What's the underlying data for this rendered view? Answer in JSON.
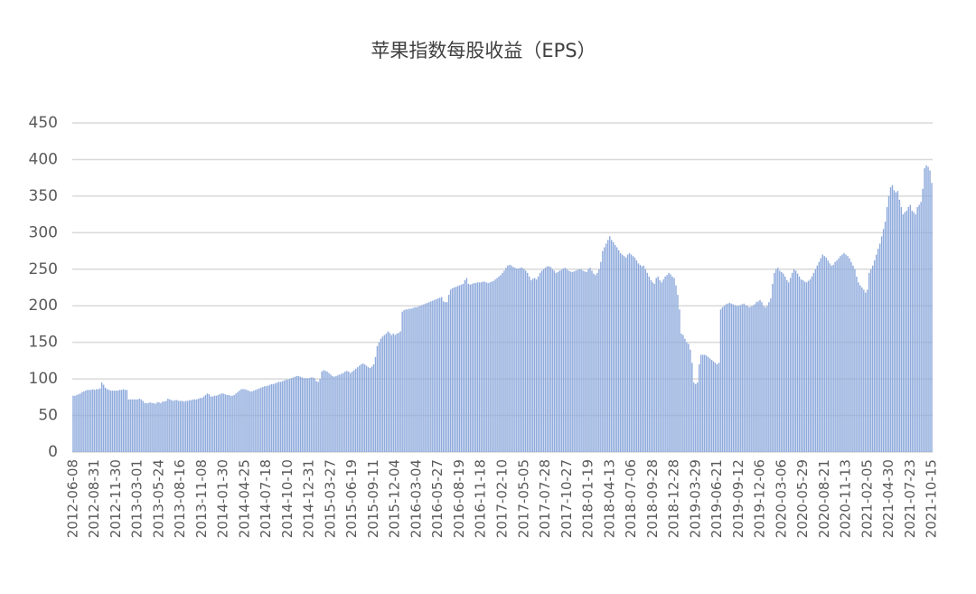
{
  "chart_data": {
    "type": "bar",
    "title": "苹果指数每股收益（EPS）",
    "color": "#8eaadc",
    "grid": true,
    "ylim": [
      0,
      450
    ],
    "yticks": [
      0,
      50,
      100,
      150,
      200,
      250,
      300,
      350,
      400,
      450
    ],
    "categories": [
      "2012-06-08",
      null,
      null,
      null,
      null,
      null,
      null,
      null,
      null,
      null,
      null,
      null,
      "2012-08-31",
      null,
      null,
      null,
      null,
      null,
      null,
      null,
      null,
      null,
      null,
      null,
      "2012-11-30",
      null,
      null,
      null,
      null,
      null,
      null,
      null,
      null,
      null,
      null,
      null,
      "2013-03-01",
      null,
      null,
      null,
      null,
      null,
      null,
      null,
      null,
      null,
      null,
      null,
      "2013-05-24",
      null,
      null,
      null,
      null,
      null,
      null,
      null,
      null,
      null,
      null,
      null,
      "2013-08-16",
      null,
      null,
      null,
      null,
      null,
      null,
      null,
      null,
      null,
      null,
      null,
      "2013-11-08",
      null,
      null,
      null,
      null,
      null,
      null,
      null,
      null,
      null,
      null,
      null,
      "2014-01-30",
      null,
      null,
      null,
      null,
      null,
      null,
      null,
      null,
      null,
      null,
      null,
      "2014-04-25",
      null,
      null,
      null,
      null,
      null,
      null,
      null,
      null,
      null,
      null,
      null,
      "2014-07-18",
      null,
      null,
      null,
      null,
      null,
      null,
      null,
      null,
      null,
      null,
      null,
      "2014-10-10",
      null,
      null,
      null,
      null,
      null,
      null,
      null,
      null,
      null,
      null,
      null,
      "2014-12-31",
      null,
      null,
      null,
      null,
      null,
      null,
      null,
      null,
      null,
      null,
      null,
      "2015-03-27",
      null,
      null,
      null,
      null,
      null,
      null,
      null,
      null,
      null,
      null,
      null,
      "2015-06-19",
      null,
      null,
      null,
      null,
      null,
      null,
      null,
      null,
      null,
      null,
      null,
      "2015-09-11",
      null,
      null,
      null,
      null,
      null,
      null,
      null,
      null,
      null,
      null,
      null,
      "2015-12-04",
      null,
      null,
      null,
      null,
      null,
      null,
      null,
      null,
      null,
      null,
      null,
      "2016-03-04",
      null,
      null,
      null,
      null,
      null,
      null,
      null,
      null,
      null,
      null,
      null,
      "2016-05-27",
      null,
      null,
      null,
      null,
      null,
      null,
      null,
      null,
      null,
      null,
      null,
      "2016-08-19",
      null,
      null,
      null,
      null,
      null,
      null,
      null,
      null,
      null,
      null,
      null,
      "2016-11-18",
      null,
      null,
      null,
      null,
      null,
      null,
      null,
      null,
      null,
      null,
      null,
      "2017-02-10",
      null,
      null,
      null,
      null,
      null,
      null,
      null,
      null,
      null,
      null,
      null,
      "2017-05-05",
      null,
      null,
      null,
      null,
      null,
      null,
      null,
      null,
      null,
      null,
      null,
      "2017-07-28",
      null,
      null,
      null,
      null,
      null,
      null,
      null,
      null,
      null,
      null,
      null,
      "2017-10-27",
      null,
      null,
      null,
      null,
      null,
      null,
      null,
      null,
      null,
      null,
      null,
      "2018-01-19",
      null,
      null,
      null,
      null,
      null,
      null,
      null,
      null,
      null,
      null,
      null,
      "2018-04-13",
      null,
      null,
      null,
      null,
      null,
      null,
      null,
      null,
      null,
      null,
      null,
      "2018-07-06",
      null,
      null,
      null,
      null,
      null,
      null,
      null,
      null,
      null,
      null,
      null,
      "2018-09-28",
      null,
      null,
      null,
      null,
      null,
      null,
      null,
      null,
      null,
      null,
      null,
      "2018-12-28",
      null,
      null,
      null,
      null,
      null,
      null,
      null,
      null,
      null,
      null,
      null,
      "2019-03-29",
      null,
      null,
      null,
      null,
      null,
      null,
      null,
      null,
      null,
      null,
      null,
      "2019-06-21",
      null,
      null,
      null,
      null,
      null,
      null,
      null,
      null,
      null,
      null,
      null,
      "2019-09-12",
      null,
      null,
      null,
      null,
      null,
      null,
      null,
      null,
      null,
      null,
      null,
      "2019-12-06",
      null,
      null,
      null,
      null,
      null,
      null,
      null,
      null,
      null,
      null,
      null,
      "2020-03-06",
      null,
      null,
      null,
      null,
      null,
      null,
      null,
      null,
      null,
      null,
      null,
      "2020-05-29",
      null,
      null,
      null,
      null,
      null,
      null,
      null,
      null,
      null,
      null,
      null,
      "2020-08-21",
      null,
      null,
      null,
      null,
      null,
      null,
      null,
      null,
      null,
      null,
      null,
      "2020-11-13",
      null,
      null,
      null,
      null,
      null,
      null,
      null,
      null,
      null,
      null,
      null,
      "2021-02-05",
      null,
      null,
      null,
      null,
      null,
      null,
      null,
      null,
      null,
      null,
      null,
      "2021-04-30",
      null,
      null,
      null,
      null,
      null,
      null,
      null,
      null,
      null,
      null,
      null,
      "2021-07-23",
      null,
      null,
      null,
      null,
      null,
      null,
      null,
      null,
      null,
      null,
      null,
      "2021-10-15"
    ],
    "values": [
      77,
      77,
      78,
      79,
      80,
      82,
      83,
      84,
      85,
      85,
      85,
      86,
      85,
      86,
      86,
      87,
      95,
      92,
      88,
      86,
      85,
      84,
      84,
      84,
      84,
      84,
      85,
      85,
      86,
      85,
      85,
      72,
      72,
      72,
      72,
      72,
      72,
      73,
      72,
      70,
      67,
      67,
      67,
      68,
      67,
      67,
      66,
      68,
      68,
      67,
      69,
      69,
      70,
      73,
      72,
      71,
      70,
      71,
      71,
      70,
      70,
      70,
      69,
      70,
      70,
      71,
      71,
      72,
      72,
      72,
      73,
      74,
      74,
      76,
      78,
      80,
      79,
      76,
      76,
      77,
      77,
      78,
      79,
      80,
      80,
      79,
      78,
      78,
      77,
      77,
      78,
      80,
      82,
      84,
      86,
      86,
      86,
      85,
      84,
      83,
      83,
      84,
      85,
      86,
      87,
      88,
      89,
      90,
      90,
      91,
      92,
      93,
      93,
      94,
      95,
      96,
      96,
      97,
      98,
      99,
      99,
      100,
      101,
      102,
      103,
      104,
      104,
      103,
      102,
      101,
      101,
      101,
      101,
      102,
      102,
      101,
      97,
      96,
      100,
      110,
      112,
      111,
      110,
      108,
      106,
      104,
      103,
      104,
      105,
      106,
      107,
      108,
      110,
      111,
      110,
      108,
      110,
      112,
      114,
      116,
      118,
      120,
      121,
      120,
      118,
      116,
      115,
      117,
      120,
      130,
      145,
      150,
      155,
      158,
      160,
      162,
      165,
      163,
      160,
      162,
      160,
      162,
      163,
      165,
      192,
      194,
      195,
      195,
      196,
      196,
      197,
      198,
      198,
      199,
      200,
      201,
      202,
      203,
      204,
      205,
      206,
      207,
      208,
      209,
      210,
      211,
      212,
      206,
      205,
      205,
      215,
      222,
      224,
      225,
      226,
      227,
      228,
      229,
      230,
      235,
      238,
      230,
      229,
      230,
      231,
      231,
      232,
      232,
      232,
      233,
      233,
      232,
      231,
      232,
      233,
      234,
      236,
      238,
      240,
      242,
      245,
      248,
      252,
      255,
      256,
      255,
      253,
      252,
      251,
      251,
      252,
      252,
      250,
      248,
      245,
      240,
      235,
      237,
      238,
      236,
      240,
      245,
      248,
      250,
      252,
      254,
      254,
      253,
      250,
      248,
      245,
      246,
      248,
      249,
      251,
      252,
      250,
      248,
      247,
      246,
      247,
      248,
      249,
      250,
      250,
      248,
      247,
      246,
      250,
      252,
      248,
      244,
      242,
      245,
      250,
      260,
      275,
      280,
      285,
      290,
      295,
      290,
      287,
      283,
      280,
      276,
      272,
      270,
      268,
      266,
      270,
      272,
      270,
      268,
      266,
      262,
      258,
      256,
      254,
      255,
      250,
      245,
      240,
      235,
      232,
      230,
      238,
      240,
      235,
      232,
      236,
      240,
      242,
      245,
      243,
      240,
      238,
      228,
      215,
      195,
      162,
      160,
      155,
      150,
      148,
      140,
      122,
      95,
      93,
      95,
      120,
      133,
      133,
      133,
      132,
      130,
      128,
      126,
      124,
      122,
      120,
      122,
      195,
      198,
      200,
      202,
      203,
      204,
      203,
      202,
      201,
      200,
      200,
      201,
      202,
      203,
      201,
      200,
      198,
      199,
      200,
      202,
      205,
      206,
      208,
      205,
      200,
      198,
      200,
      205,
      210,
      230,
      245,
      250,
      252,
      248,
      246,
      244,
      240,
      235,
      232,
      238,
      245,
      250,
      248,
      244,
      240,
      236,
      235,
      233,
      232,
      234,
      236,
      240,
      245,
      250,
      255,
      260,
      265,
      270,
      268,
      266,
      262,
      258,
      255,
      256,
      260,
      262,
      265,
      268,
      270,
      272,
      270,
      268,
      265,
      260,
      255,
      250,
      240,
      232,
      228,
      225,
      222,
      218,
      222,
      245,
      250,
      255,
      262,
      270,
      278,
      285,
      295,
      305,
      315,
      335,
      350,
      362,
      365,
      358,
      355,
      357,
      345,
      335,
      325,
      328,
      330,
      335,
      338,
      330,
      328,
      325,
      335,
      338,
      342,
      360,
      388,
      392,
      390,
      385,
      368
    ]
  }
}
